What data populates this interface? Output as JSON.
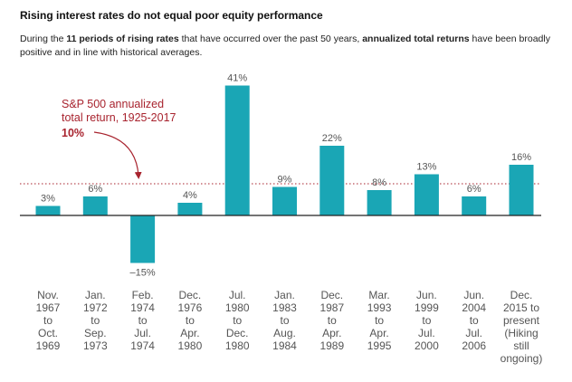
{
  "title": "Rising interest rates do not equal poor equity performance",
  "subtitle": {
    "part1": "During the ",
    "bold1": "11 periods of rising rates",
    "part2": " that have occurred over the past 50 years, ",
    "bold2": "annualized total returns",
    "part3": " have been broadly positive and in line with historical averages."
  },
  "colors": {
    "bar": "#1aa6b5",
    "reference": "#a8232e",
    "text": "#555555",
    "axis": "#222222"
  },
  "chart_data": {
    "type": "bar",
    "categories": [
      [
        "Nov.",
        "1967",
        "to",
        "Oct.",
        "1969"
      ],
      [
        "Jan.",
        "1972",
        "to",
        "Sep.",
        "1973"
      ],
      [
        "Feb.",
        "1974",
        "to",
        "Jul.",
        "1974"
      ],
      [
        "Dec.",
        "1976",
        "to",
        "Apr.",
        "1980"
      ],
      [
        "Jul.",
        "1980",
        "to",
        "Dec.",
        "1980"
      ],
      [
        "Jan.",
        "1983",
        "to",
        "Aug.",
        "1984"
      ],
      [
        "Dec.",
        "1987",
        "to",
        "Apr.",
        "1989"
      ],
      [
        "Mar.",
        "1993",
        "to",
        "Apr.",
        "1995"
      ],
      [
        "Jun.",
        "1999",
        "to",
        "Jul.",
        "2000"
      ],
      [
        "Jun.",
        "2004",
        "to",
        "Jul.",
        "2006"
      ],
      [
        "Dec.",
        "2015 to",
        "present",
        "(Hiking",
        "still",
        "ongoing)"
      ]
    ],
    "values": [
      3,
      6,
      -15,
      4,
      41,
      9,
      22,
      8,
      13,
      6,
      16
    ],
    "value_labels": [
      "3%",
      "6%",
      "–15%",
      "4%",
      "41%",
      "9%",
      "22%",
      "8%",
      "13%",
      "6%",
      "16%"
    ],
    "reference_line": {
      "value": 10,
      "label_lines": [
        "S&P 500 annualized",
        "total return, 1925-2017"
      ],
      "value_label": "10%",
      "style": "dotted"
    },
    "ylim": [
      -15,
      41
    ],
    "grid": false
  }
}
